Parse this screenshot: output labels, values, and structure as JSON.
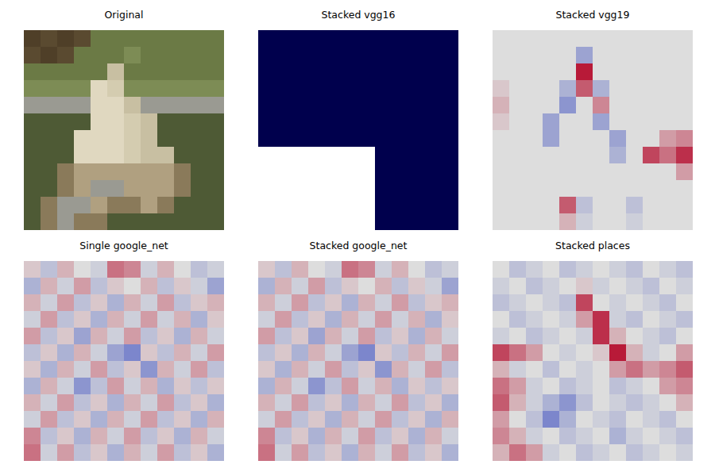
{
  "chart_data": [
    {
      "type": "image",
      "title": "Original",
      "tick_labels": false,
      "cells": [
        [
          "#4f3f28",
          "#5a4a30",
          "#4f3f28",
          "#5a4a30",
          "#6b7a45",
          "#6b7a45",
          "#6b7a45",
          "#6b7a45",
          "#6b7a45",
          "#6b7a45",
          "#6b7a45",
          "#6b7a45"
        ],
        [
          "#5a4a30",
          "#4f3f28",
          "#5a4a30",
          "#6b7a45",
          "#6b7a45",
          "#6b7a45",
          "#7d8c55",
          "#6b7a45",
          "#6b7a45",
          "#6b7a45",
          "#6b7a45",
          "#6b7a45"
        ],
        [
          "#6b7a45",
          "#6b7a45",
          "#6b7a45",
          "#6b7a45",
          "#6b7a45",
          "#c8bfa2",
          "#6b7a45",
          "#6b7a45",
          "#6b7a45",
          "#6b7a45",
          "#6b7a45",
          "#6b7a45"
        ],
        [
          "#7d8c55",
          "#7d8c55",
          "#7d8c55",
          "#7d8c55",
          "#e0d8c0",
          "#d4ccb0",
          "#7d8c55",
          "#7d8c55",
          "#7d8c55",
          "#7d8c55",
          "#7d8c55",
          "#7d8c55"
        ],
        [
          "#9a9a92",
          "#9a9a92",
          "#9a9a92",
          "#9a9a92",
          "#e0d8c0",
          "#e0d8c0",
          "#c8bfa2",
          "#9a9a92",
          "#9a9a92",
          "#9a9a92",
          "#9a9a92",
          "#9a9a92"
        ],
        [
          "#4e5a35",
          "#4e5a35",
          "#4e5a35",
          "#4e5a35",
          "#e0d8c0",
          "#e0d8c0",
          "#d4ccb0",
          "#c8bfa2",
          "#4e5a35",
          "#4e5a35",
          "#4e5a35",
          "#4e5a35"
        ],
        [
          "#4e5a35",
          "#4e5a35",
          "#4e5a35",
          "#e0d8c0",
          "#e0d8c0",
          "#e0d8c0",
          "#d4ccb0",
          "#c8bfa2",
          "#4e5a35",
          "#4e5a35",
          "#4e5a35",
          "#4e5a35"
        ],
        [
          "#4e5a35",
          "#4e5a35",
          "#4e5a35",
          "#e0d8c0",
          "#e0d8c0",
          "#e0d8c0",
          "#d4ccb0",
          "#c8bfa2",
          "#c8bfa2",
          "#4e5a35",
          "#4e5a35",
          "#4e5a35"
        ],
        [
          "#4e5a35",
          "#4e5a35",
          "#8a7a5a",
          "#b0a080",
          "#b0a080",
          "#b0a080",
          "#b0a080",
          "#b0a080",
          "#b0a080",
          "#8a7a5a",
          "#4e5a35",
          "#4e5a35"
        ],
        [
          "#4e5a35",
          "#4e5a35",
          "#8a7a5a",
          "#b0a080",
          "#9a9a92",
          "#9a9a92",
          "#b0a080",
          "#b0a080",
          "#b0a080",
          "#8a7a5a",
          "#4e5a35",
          "#4e5a35"
        ],
        [
          "#4e5a35",
          "#8a7a5a",
          "#9a9a92",
          "#9a9a92",
          "#b0a080",
          "#8a7a5a",
          "#8a7a5a",
          "#b0a080",
          "#8a7a5a",
          "#4e5a35",
          "#4e5a35",
          "#4e5a35"
        ],
        [
          "#4e5a35",
          "#8a7a5a",
          "#9a9a92",
          "#8a7a5a",
          "#8a7a5a",
          "#4e5a35",
          "#4e5a35",
          "#4e5a35",
          "#4e5a35",
          "#4e5a35",
          "#4e5a35",
          "#4e5a35"
        ]
      ]
    },
    {
      "type": "heatmap",
      "title": "Stacked vgg16",
      "tick_labels": false,
      "colors": [
        "#00004d",
        "#0000ff",
        "#ffffff",
        "#ff0000",
        "#800000"
      ],
      "clim": [
        -1,
        1
      ],
      "values": [
        [
          -1,
          -1,
          -1,
          -1,
          -1,
          -1,
          -1,
          -1,
          -1,
          -1,
          -1,
          -1
        ],
        [
          -1,
          -1,
          -1,
          -1,
          -1,
          -1,
          -1,
          -1,
          -1,
          -1,
          -1,
          -1
        ],
        [
          -1,
          -1,
          -1,
          -1,
          -1,
          -1,
          -1,
          -1,
          -1,
          -1,
          -1,
          -1
        ],
        [
          -1,
          -1,
          -1,
          -1,
          -1,
          -1,
          -1,
          -1,
          -1,
          -1,
          -1,
          -1
        ],
        [
          -1,
          -1,
          -1,
          -1,
          -1,
          -1,
          -1,
          -1,
          -1,
          -1,
          -1,
          -1
        ],
        [
          -1,
          -1,
          -1,
          -1,
          -1,
          -1,
          -1,
          -1,
          -1,
          -1,
          -1,
          -1
        ],
        [
          -1,
          -1,
          -1,
          -1,
          -1,
          -1,
          -1,
          -1,
          -1,
          -1,
          -1,
          -1
        ],
        [
          0,
          0,
          0,
          0,
          0,
          0,
          0,
          -1,
          -1,
          -1,
          -1,
          -1
        ],
        [
          0,
          0,
          0,
          0,
          0,
          0,
          0,
          -1,
          -1,
          -1,
          -1,
          -1
        ],
        [
          0,
          0,
          0,
          0,
          0,
          0,
          0,
          -1,
          -1,
          -1,
          -1,
          -1
        ],
        [
          0,
          0,
          0,
          0,
          0,
          0,
          0,
          -1,
          -1,
          -1,
          -1,
          -1
        ],
        [
          0,
          0,
          0,
          0,
          0,
          0,
          0,
          -1,
          -1,
          -1,
          -1,
          -1
        ]
      ]
    },
    {
      "type": "heatmap",
      "title": "Stacked vgg19",
      "tick_labels": false,
      "colors": [
        "#3b4cc0",
        "#dddddd",
        "#b40426"
      ],
      "clim": [
        -1,
        1
      ],
      "values": [
        [
          0,
          0,
          0,
          0,
          0,
          0,
          0,
          0,
          0,
          0,
          0,
          0
        ],
        [
          0,
          0,
          0,
          0,
          0,
          -0.4,
          0,
          0,
          0,
          0,
          0,
          0
        ],
        [
          0,
          0,
          0,
          0,
          0,
          0.9,
          0,
          0,
          0,
          0,
          0,
          0
        ],
        [
          0.1,
          0,
          0,
          0,
          -0.3,
          0.6,
          -0.3,
          0,
          0,
          0,
          0,
          0
        ],
        [
          0.2,
          0,
          0,
          0,
          -0.5,
          0,
          0.4,
          0,
          0,
          0,
          0,
          0
        ],
        [
          0.1,
          0,
          0,
          -0.4,
          0,
          0,
          -0.4,
          0,
          0,
          0,
          0,
          0
        ],
        [
          0,
          0,
          0,
          -0.4,
          0,
          0,
          0,
          -0.4,
          0,
          0,
          0.3,
          0.4
        ],
        [
          0,
          0,
          0,
          0,
          0,
          0,
          0,
          -0.3,
          0,
          0.7,
          0.5,
          0.8
        ],
        [
          0,
          0,
          0,
          0,
          0,
          0,
          0,
          0,
          0,
          0,
          0,
          0.3
        ],
        [
          0,
          0,
          0,
          0,
          0,
          0,
          0,
          0,
          0,
          0,
          0,
          0
        ],
        [
          0,
          0,
          0,
          0,
          0.6,
          -0.2,
          0,
          0,
          -0.2,
          0,
          0,
          0
        ],
        [
          0,
          0,
          0,
          0,
          0.2,
          -0.1,
          0,
          0,
          -0.1,
          0,
          0,
          0
        ]
      ]
    },
    {
      "type": "heatmap",
      "title": "Single google_net",
      "tick_labels": false,
      "colors": [
        "#3b4cc0",
        "#dddddd",
        "#b40426"
      ],
      "clim": [
        -1,
        1
      ],
      "values": [
        [
          0.1,
          -0.2,
          0.2,
          0,
          -0.1,
          0.5,
          0.4,
          -0.1,
          0.2,
          0,
          -0.2,
          -0.1
        ],
        [
          -0.3,
          0.2,
          -0.1,
          0.3,
          -0.2,
          0.1,
          0,
          0.2,
          -0.2,
          0.1,
          -0.1,
          -0.4
        ],
        [
          0.2,
          -0.1,
          0.3,
          -0.2,
          0.1,
          -0.3,
          0.2,
          -0.1,
          0.3,
          -0.2,
          0.1,
          0.2
        ],
        [
          -0.1,
          0.3,
          -0.2,
          0.1,
          -0.3,
          0.2,
          -0.1,
          0.3,
          -0.1,
          0.2,
          -0.3,
          0.1
        ],
        [
          0.3,
          -0.2,
          0.1,
          -0.4,
          0.2,
          -0.1,
          0.3,
          -0.2,
          0.1,
          -0.3,
          0.2,
          -0.1
        ],
        [
          -0.2,
          0.1,
          -0.3,
          0.2,
          -0.1,
          -0.4,
          -0.6,
          0.1,
          -0.2,
          0.2,
          -0.1,
          0.3
        ],
        [
          0.1,
          -0.3,
          0.2,
          -0.1,
          0.3,
          -0.2,
          0.1,
          -0.5,
          0.2,
          -0.1,
          0.3,
          -0.2
        ],
        [
          -0.3,
          0.2,
          -0.1,
          -0.5,
          -0.2,
          0.3,
          -0.1,
          0.2,
          -0.3,
          0.1,
          -0.2,
          0.1
        ],
        [
          0.2,
          -0.1,
          0.3,
          -0.2,
          0.1,
          -0.3,
          0.2,
          -0.1,
          0.3,
          -0.2,
          0.1,
          -0.3
        ],
        [
          -0.1,
          0.3,
          -0.2,
          0.1,
          -0.3,
          0.2,
          -0.1,
          0.3,
          -0.2,
          0.1,
          -0.3,
          0.2
        ],
        [
          0.4,
          -0.2,
          0.1,
          -0.3,
          0.2,
          -0.1,
          0.3,
          -0.2,
          0.1,
          -0.3,
          0.2,
          -0.1
        ],
        [
          0.5,
          -0.1,
          0.3,
          -0.2,
          0.1,
          -0.3,
          0.2,
          -0.1,
          0.3,
          -0.2,
          0.1,
          -0.3
        ]
      ]
    },
    {
      "type": "heatmap",
      "title": "Stacked google_net",
      "tick_labels": false,
      "colors": [
        "#3b4cc0",
        "#dddddd",
        "#b40426"
      ],
      "clim": [
        -1,
        1
      ],
      "values": [
        [
          0.1,
          -0.2,
          0.2,
          0,
          -0.1,
          0.5,
          0.4,
          -0.1,
          0.2,
          0,
          -0.2,
          -0.1
        ],
        [
          -0.3,
          0.2,
          -0.1,
          0.3,
          -0.2,
          0.1,
          0,
          0.2,
          -0.2,
          0.1,
          -0.1,
          -0.4
        ],
        [
          0.2,
          -0.1,
          0.3,
          -0.2,
          0.1,
          -0.3,
          0.2,
          -0.1,
          0.3,
          -0.2,
          0.1,
          0.2
        ],
        [
          -0.1,
          0.3,
          -0.2,
          0.1,
          -0.3,
          0.2,
          -0.1,
          0.3,
          -0.1,
          0.2,
          -0.3,
          0.1
        ],
        [
          0.3,
          -0.2,
          0.1,
          -0.4,
          0.2,
          -0.1,
          0.3,
          -0.2,
          0.1,
          -0.3,
          0.2,
          -0.1
        ],
        [
          -0.2,
          0.1,
          -0.3,
          0.2,
          -0.1,
          -0.4,
          -0.6,
          0.1,
          -0.2,
          0.2,
          -0.1,
          0.3
        ],
        [
          0.1,
          -0.3,
          0.2,
          -0.1,
          0.3,
          -0.2,
          0.1,
          -0.5,
          0.2,
          -0.1,
          0.3,
          -0.2
        ],
        [
          -0.3,
          0.2,
          -0.1,
          -0.5,
          -0.2,
          0.3,
          -0.1,
          0.2,
          -0.3,
          0.1,
          -0.2,
          0.1
        ],
        [
          0.2,
          -0.1,
          0.3,
          -0.2,
          0.1,
          -0.3,
          0.2,
          -0.1,
          0.3,
          -0.2,
          0.1,
          -0.3
        ],
        [
          -0.1,
          0.3,
          -0.2,
          0.1,
          -0.3,
          0.2,
          -0.1,
          0.3,
          -0.2,
          0.1,
          -0.3,
          0.2
        ],
        [
          0.4,
          -0.2,
          0.1,
          -0.3,
          0.2,
          -0.1,
          0.3,
          -0.2,
          0.1,
          -0.3,
          0.2,
          -0.1
        ],
        [
          0.5,
          -0.1,
          0.3,
          -0.2,
          0.1,
          -0.3,
          0.2,
          -0.1,
          0.3,
          -0.2,
          0.1,
          -0.3
        ]
      ]
    },
    {
      "type": "heatmap",
      "title": "Stacked places",
      "tick_labels": false,
      "colors": [
        "#3b4cc0",
        "#dddddd",
        "#b40426"
      ],
      "clim": [
        -1,
        1
      ],
      "values": [
        [
          0,
          -0.2,
          -0.1,
          0,
          -0.2,
          -0.1,
          0,
          -0.1,
          -0.2,
          0,
          -0.1,
          -0.2
        ],
        [
          -0.1,
          0,
          -0.2,
          -0.1,
          0,
          0.1,
          -0.1,
          0,
          -0.1,
          -0.2,
          0,
          -0.1
        ],
        [
          -0.2,
          -0.1,
          0,
          -0.1,
          -0.2,
          0.7,
          0,
          -0.1,
          0,
          -0.1,
          -0.2,
          0
        ],
        [
          0,
          -0.2,
          -0.1,
          0,
          -0.1,
          0.3,
          0.8,
          -0.1,
          -0.2,
          0,
          -0.1,
          -0.2
        ],
        [
          -0.1,
          0,
          -0.2,
          -0.1,
          0,
          -0.1,
          0.8,
          0.2,
          0,
          -0.1,
          -0.2,
          0
        ],
        [
          0.7,
          0.5,
          0.3,
          0,
          -0.1,
          0,
          0.1,
          0.9,
          0.2,
          -0.1,
          0,
          0.3
        ],
        [
          0.2,
          -0.1,
          0,
          -0.2,
          0,
          -0.1,
          0,
          0.3,
          0.5,
          0.3,
          0.4,
          0.6
        ],
        [
          0.5,
          0.3,
          -0.1,
          0,
          -0.2,
          -0.1,
          0,
          -0.2,
          -0.1,
          0,
          0.3,
          0.4
        ],
        [
          0.6,
          0.2,
          -0.1,
          -0.3,
          -0.5,
          -0.2,
          0,
          -0.1,
          -0.2,
          -0.1,
          0,
          0.2
        ],
        [
          0.3,
          0,
          -0.2,
          -0.6,
          -0.3,
          0,
          -0.1,
          -0.2,
          0,
          -0.1,
          -0.2,
          0
        ],
        [
          0.4,
          0.2,
          -0.1,
          0,
          -0.2,
          -0.1,
          0,
          -0.3,
          -0.1,
          0,
          -0.1,
          -0.2
        ],
        [
          0.2,
          0.5,
          0.3,
          -0.1,
          0,
          -0.2,
          -0.1,
          0,
          -0.2,
          -0.1,
          0,
          -0.1
        ]
      ]
    }
  ]
}
